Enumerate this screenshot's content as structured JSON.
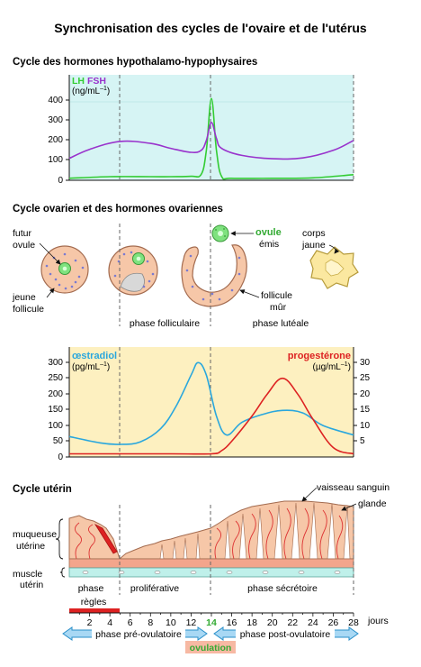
{
  "title": "Synchronisation des cycles de l'ovaire et de l'utérus",
  "hormones_section": {
    "heading": "Cycle des hormones hypothalamo-hypophysaires",
    "legend_lh": "LH",
    "legend_fsh": "FSH",
    "unit": "(ng/mL",
    "unit_exp": "–1",
    "unit_close": ")",
    "colors": {
      "lh": "#33cc33",
      "fsh": "#9933cc",
      "bg": "#d6f4f4"
    }
  },
  "ovary_section": {
    "heading": "Cycle ovarien et des hormones ovariennes",
    "label_futur_ovule_1": "futur",
    "label_futur_ovule_2": "ovule",
    "label_jeune_follicule_1": "jeune",
    "label_jeune_follicule_2": "follicule",
    "label_ovule": "ovule",
    "label_emis": "émis",
    "label_corps_jaune_1": "corps",
    "label_corps_jaune_2": "jaune",
    "label_follicule_mur_1": "follicule",
    "label_follicule_mur_2": "mûr",
    "phase_folliculaire": "phase folliculaire",
    "phase_luteale": "phase lutéale",
    "oestradiol": "œstradiol",
    "oestradiol_unit": "(pg/mL",
    "progesterone": "progestérone",
    "progesterone_unit": "(µg/mL",
    "unit_exp": "–1",
    "unit_close": ")",
    "colors": {
      "oestradiol": "#2aa7dd",
      "progesterone": "#dd2222",
      "bg": "#fdf0c0"
    }
  },
  "uterus_section": {
    "heading": "Cycle utérin",
    "label_vaisseau": "vaisseau sanguin",
    "label_glande": "glande",
    "label_muqueuse_1": "muqueuse",
    "label_muqueuse_2": "utérine",
    "label_muscle_1": "muscle",
    "label_muscle_2": "utérin",
    "phase_label": "phase",
    "phase_proliferative": "proliférative",
    "phase_secretoire": "phase sécrétoire",
    "regles": "règles",
    "days_label": "jours",
    "ovulation_day": "14",
    "phase_pre": "phase pré-ovulatoire",
    "phase_post": "phase post-ovulatoire",
    "ovulation": "ovulation"
  },
  "chart_data": [
    {
      "type": "line",
      "title": "Cycle des hormones hypothalamo-hypophysaires",
      "ylabel": "(ng/mL–1)",
      "ylim": [
        0,
        450
      ],
      "yticks": [
        0,
        100,
        200,
        300,
        400
      ],
      "x_unit": "jours",
      "xlim": [
        0,
        28
      ],
      "series": [
        {
          "name": "LH",
          "color": "#33cc33",
          "x": [
            0,
            4,
            8,
            10,
            12,
            13,
            13.5,
            14,
            14.5,
            15,
            16,
            20,
            24,
            28
          ],
          "y": [
            10,
            18,
            18,
            18,
            20,
            30,
            150,
            410,
            150,
            20,
            10,
            10,
            12,
            28
          ]
        },
        {
          "name": "FSH",
          "color": "#9933cc",
          "x": [
            0,
            2,
            5,
            8,
            10,
            12,
            13,
            13.5,
            14,
            14.5,
            15,
            17,
            20,
            23,
            26,
            28
          ],
          "y": [
            110,
            155,
            195,
            185,
            160,
            140,
            150,
            200,
            290,
            210,
            160,
            125,
            108,
            112,
            150,
            200
          ]
        }
      ]
    },
    {
      "type": "line",
      "title": "œstradiol / progestérone",
      "xlim": [
        0,
        28
      ],
      "y_left": {
        "label": "(pg/mL–1)",
        "ylim": [
          0,
          330
        ],
        "ticks": [
          0,
          50,
          100,
          150,
          200,
          250,
          300
        ]
      },
      "y_right": {
        "label": "(µg/mL–1)",
        "ylim": [
          0,
          33
        ],
        "ticks": [
          5,
          10,
          15,
          20,
          25,
          30
        ]
      },
      "series": [
        {
          "name": "œstradiol",
          "axis": "left",
          "color": "#2aa7dd",
          "x": [
            0,
            3,
            5,
            7,
            9,
            10.5,
            12,
            12.7,
            13.5,
            14.5,
            15.5,
            17,
            19,
            21,
            23,
            25,
            28
          ],
          "y": [
            65,
            45,
            40,
            48,
            90,
            160,
            260,
            300,
            260,
            130,
            70,
            110,
            135,
            148,
            140,
            100,
            70
          ]
        },
        {
          "name": "progestérone",
          "axis": "right",
          "color": "#dd2222",
          "x": [
            0,
            10,
            14,
            15,
            16,
            18,
            19.5,
            21,
            22.5,
            24,
            26,
            28
          ],
          "y": [
            1,
            1,
            1,
            2,
            5,
            13,
            20,
            25,
            20,
            12,
            3,
            1
          ]
        }
      ]
    }
  ]
}
